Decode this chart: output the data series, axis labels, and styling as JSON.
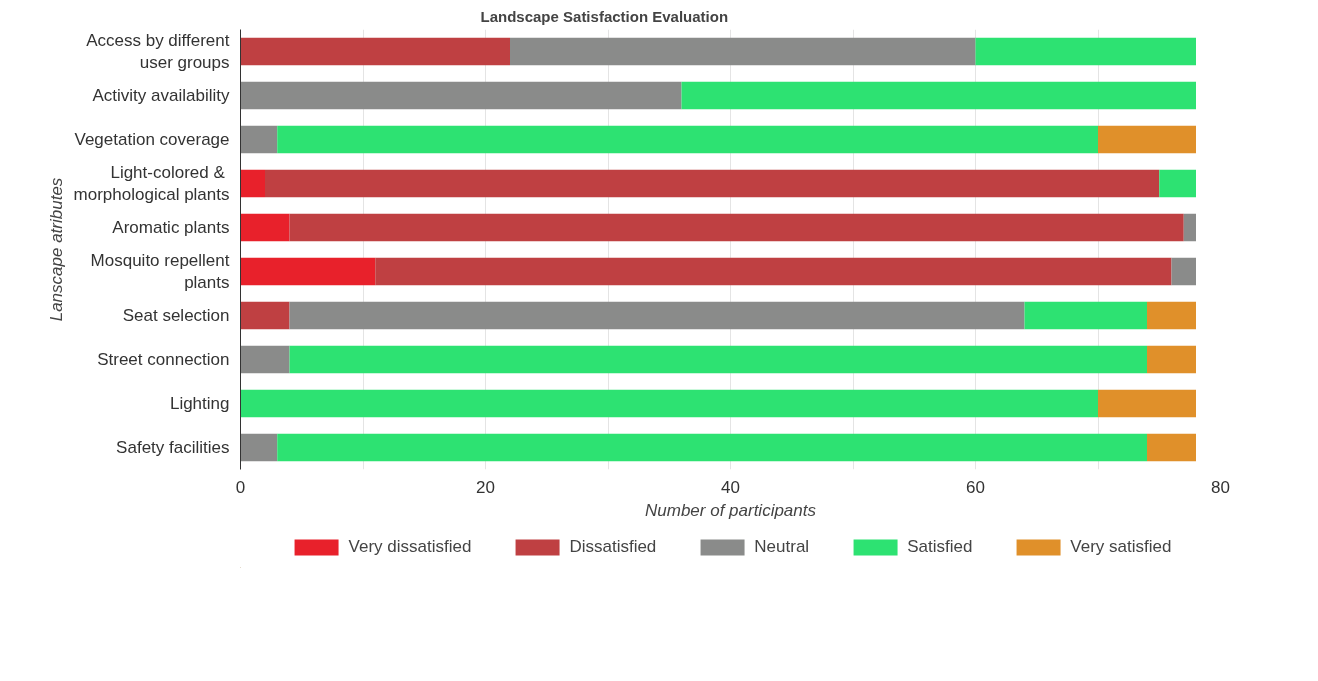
{
  "chart_data": {
    "type": "bar",
    "orientation": "horizontal",
    "stacked": true,
    "title": "Landscape Satisfaction Evaluation",
    "xlabel": "Number of participants",
    "ylabel": "Lanscape atributes",
    "categories": [
      "Access by different\nuser groups",
      "Activity availability",
      "Vegetation coverage",
      "Light-colored  &\nmorphological plants",
      "Aromatic plants",
      "Mosquito repellent\nplants",
      "Seat selection",
      "Street connection",
      "Lighting",
      "Safety facilities"
    ],
    "series": [
      {
        "name": "Very dissatisfied",
        "color": "#e8212b",
        "values": [
          null,
          null,
          null,
          2,
          4,
          11,
          null,
          null,
          null,
          null
        ]
      },
      {
        "name": "Dissatisfied",
        "color": "#bf4042",
        "values": [
          22,
          null,
          null,
          73,
          73,
          65,
          4,
          null,
          null,
          null
        ]
      },
      {
        "name": "Neutral",
        "color": "#8a8b8a",
        "values": [
          38,
          36,
          3,
          null,
          1,
          2,
          60,
          4,
          null,
          3
        ]
      },
      {
        "name": "Satisfied",
        "color": "#2de272",
        "values": [
          18,
          42,
          67,
          3,
          null,
          null,
          10,
          70,
          70,
          71
        ]
      },
      {
        "name": "Very satisfied",
        "color": "#e0902a",
        "values": [
          null,
          null,
          8,
          null,
          null,
          null,
          4,
          4,
          8,
          4
        ]
      }
    ],
    "xlim": [
      0,
      80
    ],
    "xticks": [
      0,
      {
        "value": 10,
        "label": null
      },
      20,
      {
        "value": 30,
        "label": null
      },
      40,
      {
        "value": 50,
        "label": null
      },
      60,
      {
        "value": 70,
        "label": null
      },
      80
    ],
    "grid": "x",
    "legend": "bottom"
  }
}
